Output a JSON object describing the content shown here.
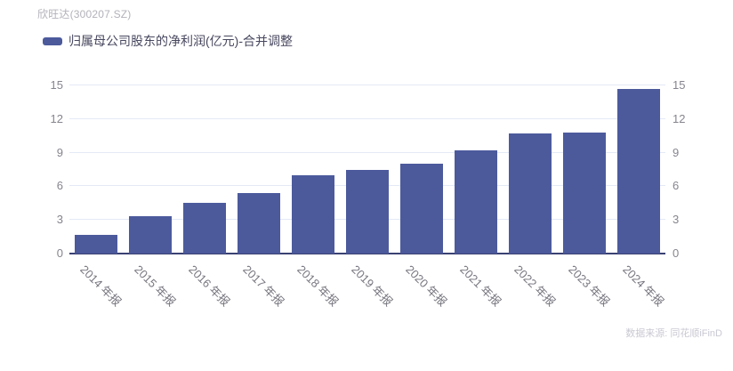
{
  "header": {
    "stock_title": "欣旺达(300207.SZ)"
  },
  "legend": {
    "label": "归属母公司股东的净利润(亿元)-合并调整"
  },
  "footer": {
    "source": "数据来源: 同花顺iFinD"
  },
  "chart_data": {
    "type": "bar",
    "title": "欣旺达(300207.SZ)",
    "series_name": "归属母公司股东的净利润(亿元)-合并调整",
    "categories": [
      "2014 年报",
      "2015 年报",
      "2016 年报",
      "2017 年报",
      "2018 年报",
      "2019 年报",
      "2020 年报",
      "2021 年报",
      "2022 年报",
      "2023 年报",
      "2024 年报"
    ],
    "values": [
      1.7,
      3.3,
      4.5,
      5.4,
      7.0,
      7.5,
      8.0,
      9.2,
      10.7,
      10.8,
      14.7
    ],
    "ylim": [
      0,
      15
    ],
    "yticks": [
      0,
      3,
      6,
      9,
      12,
      15
    ],
    "dual_y_axis": true,
    "grid": true,
    "legend_position": "top-left",
    "xlabel_rotation_deg": 45,
    "xlabel": "",
    "ylabel": "",
    "colors": {
      "bar": "#4c5a9c",
      "axis_line": "#3a4173",
      "gridline": "#e4e9f5",
      "tick_label": "#85858e",
      "x_label": "#76767f",
      "title": "#b2b2ba",
      "legend_text": "#47475f",
      "source_text": "#c9c9d3"
    }
  }
}
